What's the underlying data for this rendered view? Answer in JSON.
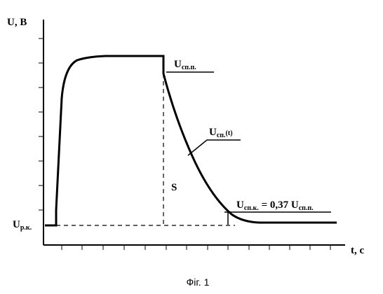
{
  "labels": {
    "y_axis": "U, B",
    "x_axis": "t, c",
    "u_start": {
      "base": "U",
      "sub": "р.к."
    },
    "u_peak": {
      "base": "U",
      "sub": "сп.п."
    },
    "u_t": {
      "base": "U",
      "sub": "сп.",
      "suffix": "(t)"
    },
    "area": "S",
    "u_final": {
      "base": "U",
      "sub": "сп.к.",
      "middle": " = 0,37 U",
      "sub2": "сп.п."
    }
  },
  "caption": "Фіг. 1"
}
